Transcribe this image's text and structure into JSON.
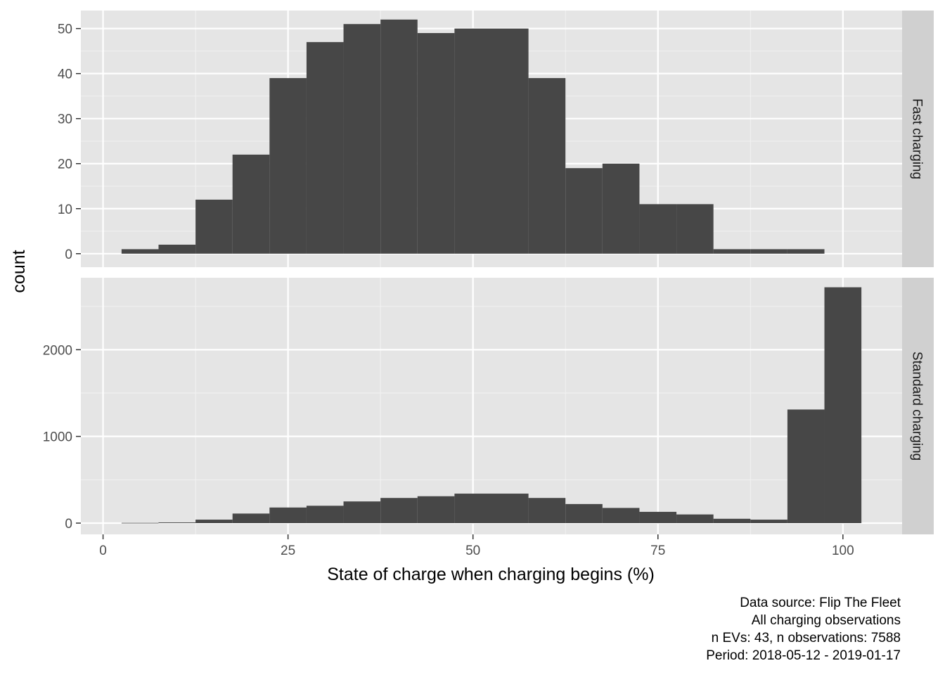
{
  "chart_data": {
    "type": "bar",
    "subtype": "faceted-histogram",
    "xlabel": "State of charge when charging begins (%)",
    "ylabel": "count",
    "x_ticks": [
      0,
      25,
      50,
      75,
      100
    ],
    "x_range": [
      -3,
      108
    ],
    "bin_width": 5,
    "bin_centers": [
      5,
      10,
      15,
      20,
      25,
      30,
      35,
      40,
      45,
      50,
      55,
      60,
      65,
      70,
      75,
      80,
      85,
      90,
      95,
      100
    ],
    "bar_color": "#474747",
    "panel_background": "#e5e5e5",
    "strip_background": "#d0d0d0",
    "grid": true,
    "facets": [
      {
        "name": "Fast charging",
        "ylim": [
          -3,
          54
        ],
        "y_ticks": [
          0,
          10,
          20,
          30,
          40,
          50
        ],
        "values": [
          1,
          2,
          12,
          22,
          39,
          47,
          51,
          52,
          49,
          50,
          50,
          39,
          19,
          20,
          11,
          11,
          1,
          1,
          1,
          null
        ]
      },
      {
        "name": "Standard charging",
        "ylim": [
          -130,
          2830
        ],
        "y_ticks": [
          0,
          1000,
          2000
        ],
        "values": [
          3,
          8,
          40,
          110,
          180,
          200,
          250,
          290,
          310,
          340,
          340,
          290,
          220,
          175,
          130,
          100,
          50,
          40,
          1310,
          2720
        ]
      }
    ],
    "caption": [
      "Data source: Flip The Fleet",
      "All charging observations",
      "n EVs: 43, n observations: 7588",
      "Period: 2018-05-12 - 2019-01-17"
    ]
  }
}
